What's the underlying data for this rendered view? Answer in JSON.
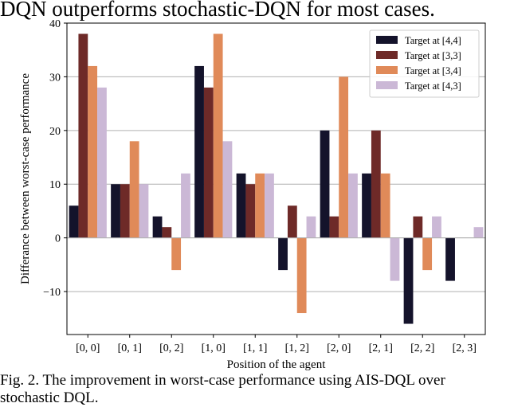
{
  "page": {
    "top_text": "DQN outperforms stochastic-DQN for most cases.",
    "caption_line1": "Fig. 2.   The improvement in worst-case performance using AIS-DQL over",
    "caption_line2": "stochastic DQL."
  },
  "chart_data": {
    "type": "bar",
    "title": "",
    "xlabel": "Position of the agent",
    "ylabel": "Differance between worst-case performance",
    "categories": [
      "[0, 0]",
      "[0, 1]",
      "[0, 2]",
      "[1, 0]",
      "[1, 1]",
      "[1, 2]",
      "[2, 0]",
      "[2, 1]",
      "[2, 2]",
      "[2, 3]"
    ],
    "ylim": [
      -18,
      40
    ],
    "yticks": [
      -10,
      0,
      10,
      20,
      30,
      40
    ],
    "grid": "horizontal",
    "legend_position": "top-right",
    "series": [
      {
        "name": "Target at [4,4]",
        "color": "#14132b",
        "values": [
          6,
          10,
          4,
          32,
          12,
          -6,
          20,
          12,
          -16,
          -8
        ]
      },
      {
        "name": "Target at [3,3]",
        "color": "#6e2a28",
        "values": [
          38,
          10,
          2,
          28,
          10,
          6,
          4,
          20,
          4,
          0
        ]
      },
      {
        "name": "Target at [3,4]",
        "color": "#e08a59",
        "values": [
          32,
          18,
          -6,
          38,
          12,
          -14,
          30,
          12,
          -6,
          0
        ]
      },
      {
        "name": "Target at [4,3]",
        "color": "#cbb8d6",
        "values": [
          28,
          10,
          12,
          18,
          12,
          4,
          12,
          -8,
          4,
          2
        ]
      }
    ]
  }
}
